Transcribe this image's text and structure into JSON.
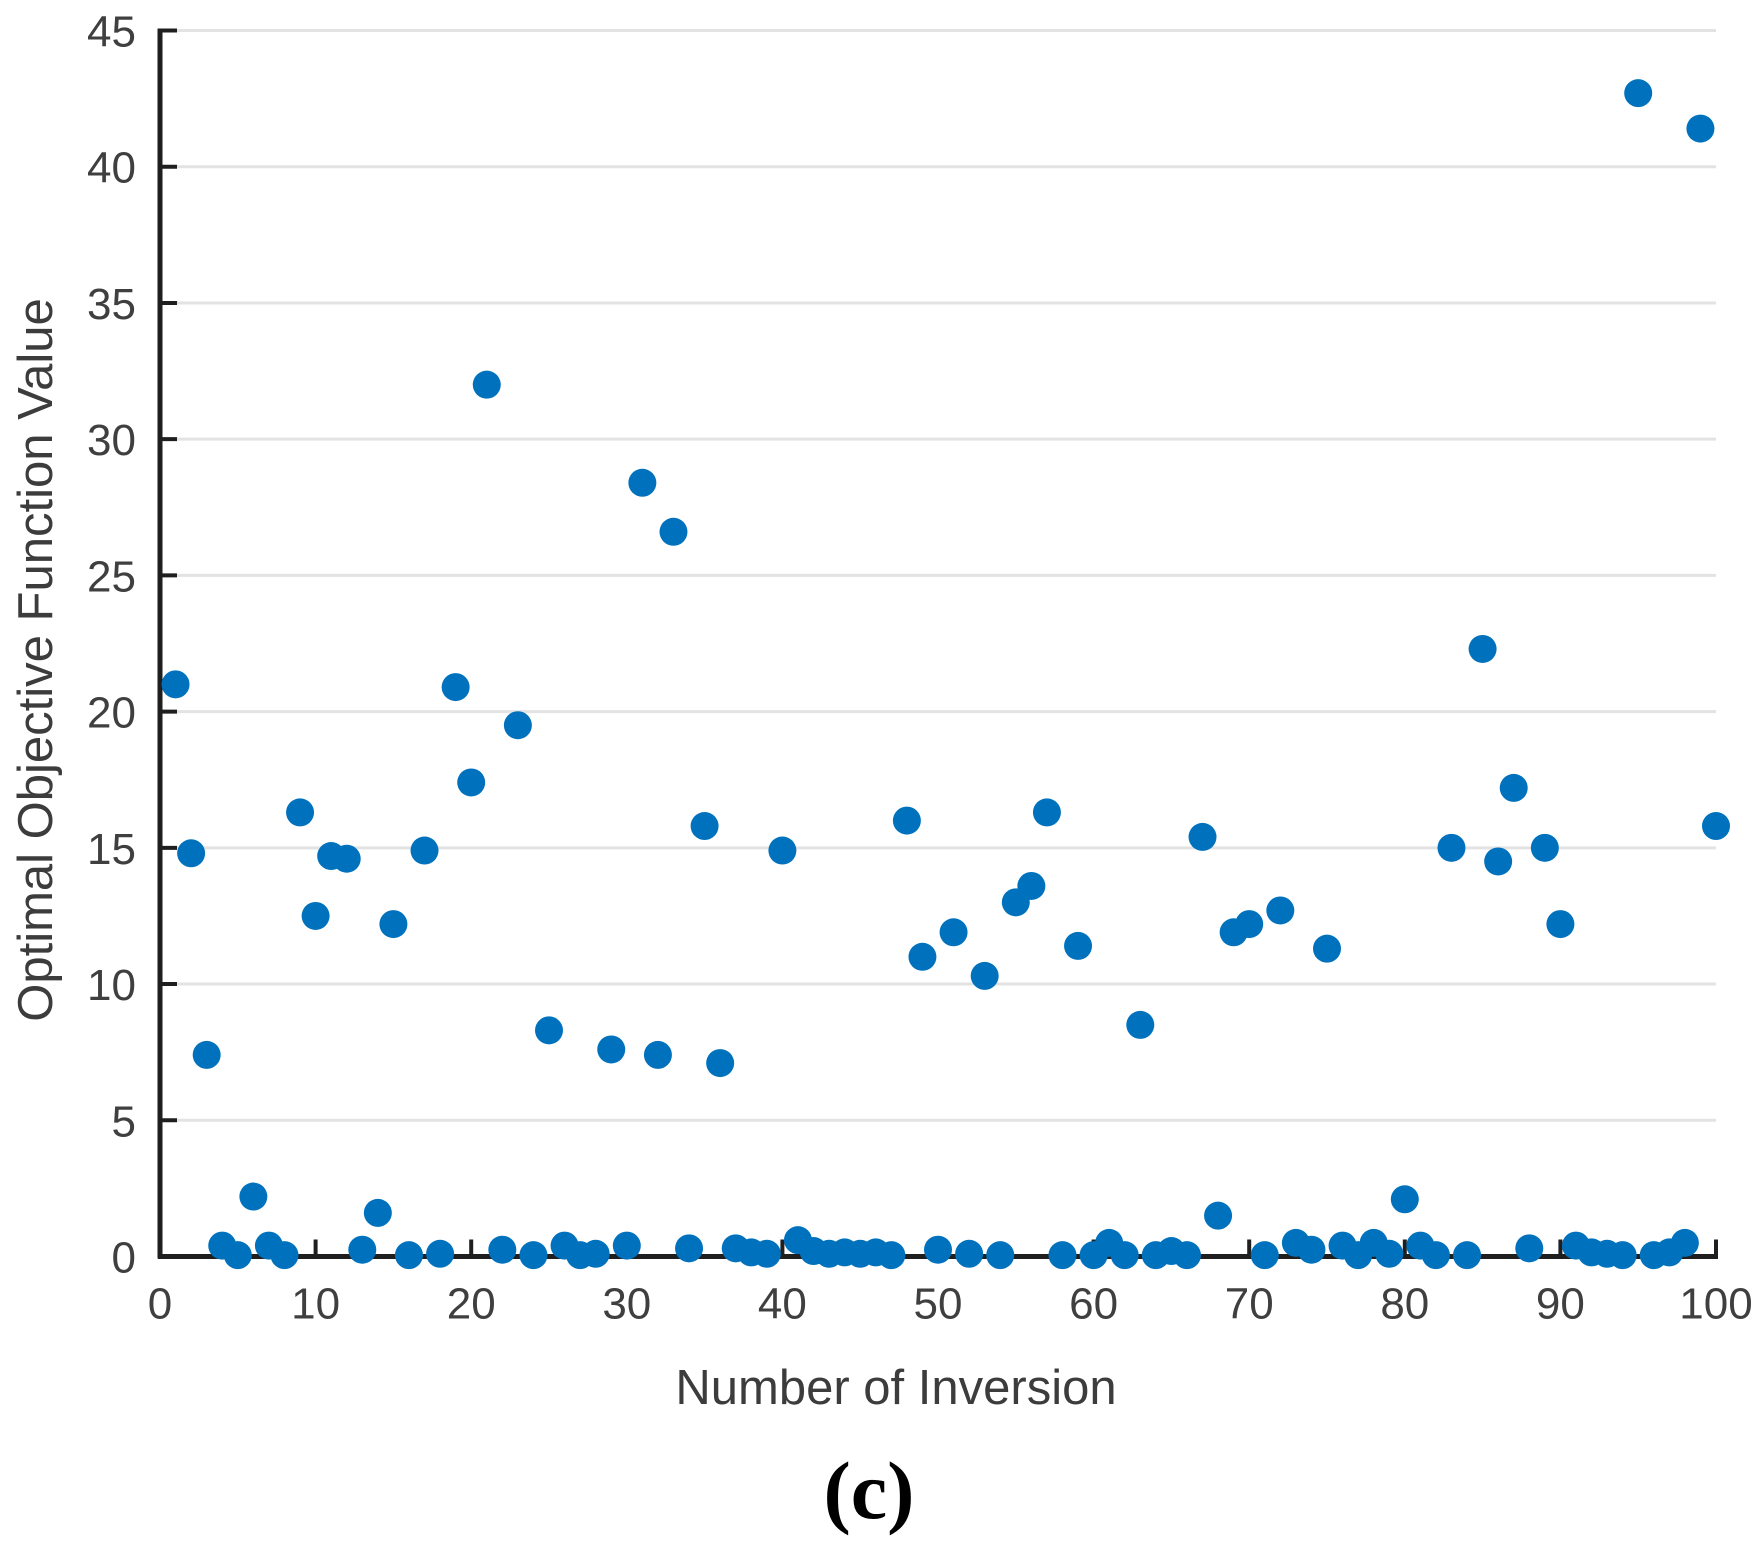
{
  "figure": {
    "caption": "(c)",
    "y_axis": {
      "label": "Optimal Objective Function Value",
      "tick_labels": [
        "0",
        "5",
        "10",
        "15",
        "20",
        "25",
        "30",
        "35",
        "40",
        "45"
      ]
    },
    "x_axis": {
      "label": "Number of Inversion",
      "tick_labels": [
        "0",
        "10",
        "20",
        "30",
        "40",
        "50",
        "60",
        "70",
        "80",
        "90",
        "100"
      ]
    }
  },
  "chart_data": {
    "type": "scatter",
    "title": "",
    "xlabel": "Number of Inversion",
    "ylabel": "Optimal Objective Function Value",
    "xlim": [
      0,
      100
    ],
    "ylim": [
      0,
      45
    ],
    "x_ticks": [
      0,
      10,
      20,
      30,
      40,
      50,
      60,
      70,
      80,
      90,
      100
    ],
    "y_ticks": [
      0,
      5,
      10,
      15,
      20,
      25,
      30,
      35,
      40,
      45
    ],
    "grid": "horizontal",
    "legend": "none",
    "marker_color": "#0072BD",
    "grid_color": "#e3e3e3",
    "axis_color": "#1f1f1f",
    "marker_radius": 14,
    "points": [
      [
        1,
        21.0
      ],
      [
        2,
        14.8
      ],
      [
        3,
        7.4
      ],
      [
        4,
        0.4
      ],
      [
        5,
        0.05
      ],
      [
        6,
        2.2
      ],
      [
        7,
        0.4
      ],
      [
        8,
        0.05
      ],
      [
        9,
        16.3
      ],
      [
        10,
        12.5
      ],
      [
        11,
        14.7
      ],
      [
        12,
        14.6
      ],
      [
        13,
        0.25
      ],
      [
        14,
        1.6
      ],
      [
        15,
        12.2
      ],
      [
        16,
        0.05
      ],
      [
        17,
        14.9
      ],
      [
        18,
        0.1
      ],
      [
        19,
        20.9
      ],
      [
        20,
        17.4
      ],
      [
        21,
        32.0
      ],
      [
        22,
        0.25
      ],
      [
        23,
        19.5
      ],
      [
        24,
        0.05
      ],
      [
        25,
        8.3
      ],
      [
        26,
        0.4
      ],
      [
        27,
        0.05
      ],
      [
        28,
        0.1
      ],
      [
        29,
        7.6
      ],
      [
        30,
        0.4
      ],
      [
        31,
        28.4
      ],
      [
        32,
        7.4
      ],
      [
        33,
        26.6
      ],
      [
        34,
        0.3
      ],
      [
        35,
        15.8
      ],
      [
        36,
        7.1
      ],
      [
        37,
        0.3
      ],
      [
        38,
        0.15
      ],
      [
        39,
        0.1
      ],
      [
        40,
        14.9
      ],
      [
        41,
        0.6
      ],
      [
        42,
        0.2
      ],
      [
        43,
        0.1
      ],
      [
        44,
        0.15
      ],
      [
        45,
        0.1
      ],
      [
        46,
        0.15
      ],
      [
        47,
        0.05
      ],
      [
        48,
        16.0
      ],
      [
        49,
        11.0
      ],
      [
        50,
        0.25
      ],
      [
        51,
        11.9
      ],
      [
        52,
        0.1
      ],
      [
        53,
        10.3
      ],
      [
        54,
        0.05
      ],
      [
        55,
        13.0
      ],
      [
        56,
        13.6
      ],
      [
        57,
        16.3
      ],
      [
        58,
        0.05
      ],
      [
        59,
        11.4
      ],
      [
        60,
        0.05
      ],
      [
        61,
        0.5
      ],
      [
        62,
        0.05
      ],
      [
        63,
        8.5
      ],
      [
        64,
        0.05
      ],
      [
        65,
        0.2
      ],
      [
        66,
        0.05
      ],
      [
        67,
        15.4
      ],
      [
        68,
        1.5
      ],
      [
        69,
        11.9
      ],
      [
        70,
        12.2
      ],
      [
        71,
        0.05
      ],
      [
        72,
        12.7
      ],
      [
        73,
        0.5
      ],
      [
        74,
        0.25
      ],
      [
        75,
        11.3
      ],
      [
        76,
        0.4
      ],
      [
        77,
        0.05
      ],
      [
        78,
        0.5
      ],
      [
        79,
        0.1
      ],
      [
        80,
        2.1
      ],
      [
        81,
        0.4
      ],
      [
        82,
        0.05
      ],
      [
        83,
        15.0
      ],
      [
        84,
        0.05
      ],
      [
        85,
        22.3
      ],
      [
        86,
        14.5
      ],
      [
        87,
        17.2
      ],
      [
        88,
        0.3
      ],
      [
        89,
        15.0
      ],
      [
        90,
        12.2
      ],
      [
        91,
        0.4
      ],
      [
        92,
        0.15
      ],
      [
        93,
        0.1
      ],
      [
        94,
        0.05
      ],
      [
        95,
        42.7
      ],
      [
        96,
        0.05
      ],
      [
        97,
        0.15
      ],
      [
        98,
        0.5
      ],
      [
        99,
        41.4
      ],
      [
        100,
        15.8
      ]
    ]
  }
}
